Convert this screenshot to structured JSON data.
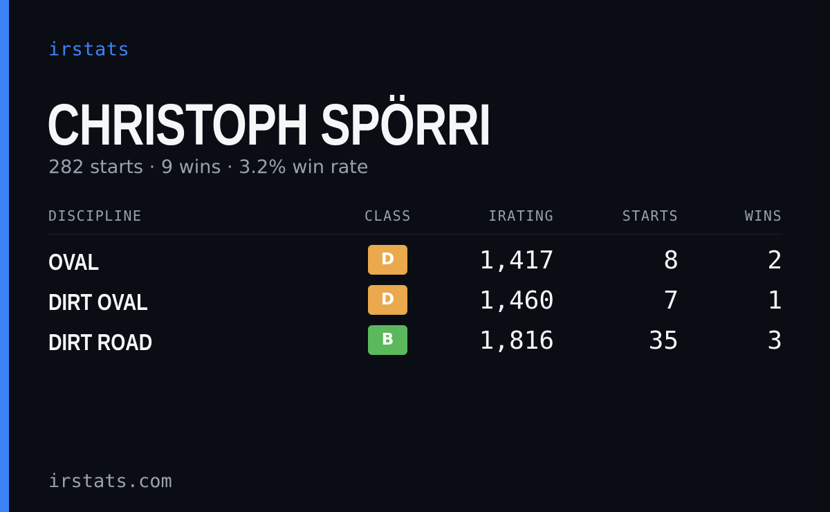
{
  "brand": "irstats",
  "driver": {
    "name": "CHRISTOPH SPÖRRI",
    "starts_text": "282 starts",
    "wins_text": "9 wins",
    "win_rate_text": "3.2% win rate",
    "separator": "·"
  },
  "table": {
    "headers": {
      "discipline": "DISCIPLINE",
      "class": "CLASS",
      "irating": "IRATING",
      "starts": "STARTS",
      "wins": "WINS"
    },
    "rows": [
      {
        "discipline": "OVAL",
        "class": "D",
        "class_color": "#e9a94c",
        "irating": "1,417",
        "starts": "8",
        "wins": "2"
      },
      {
        "discipline": "DIRT OVAL",
        "class": "D",
        "class_color": "#e9a94c",
        "irating": "1,460",
        "starts": "7",
        "wins": "1"
      },
      {
        "discipline": "DIRT ROAD",
        "class": "B",
        "class_color": "#5cb85c",
        "irating": "1,816",
        "starts": "35",
        "wins": "3"
      }
    ]
  },
  "footer": "irstats.com",
  "colors": {
    "accent": "#3b82f6",
    "background": "#0a0d14",
    "muted_text": "#9aa1ae",
    "primary_text": "#f5f6f8"
  }
}
